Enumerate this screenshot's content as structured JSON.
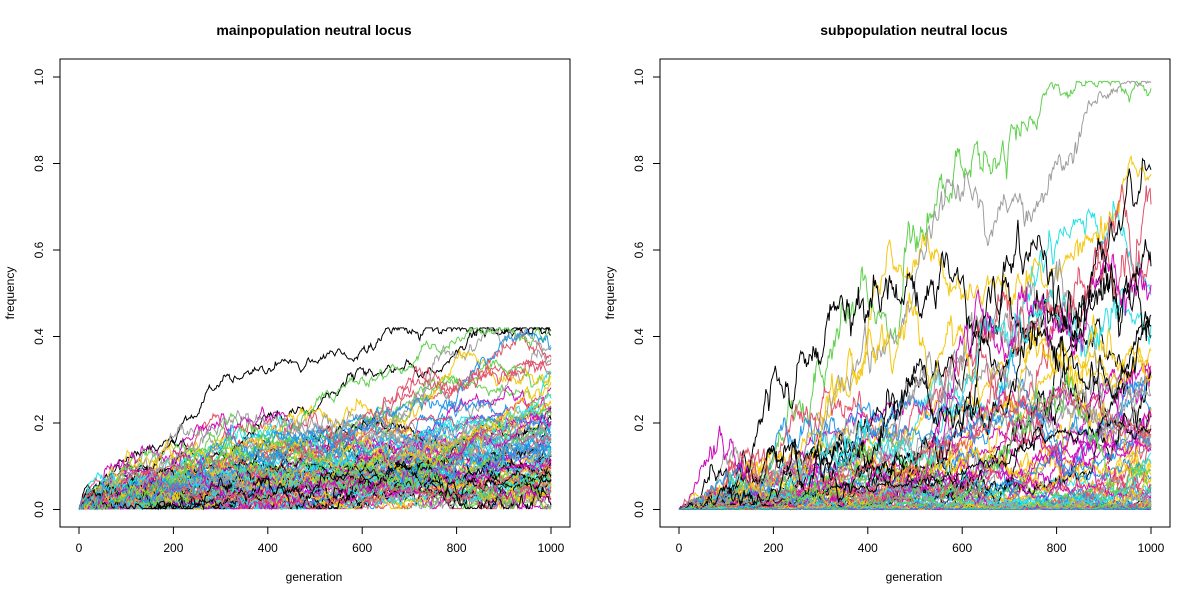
{
  "chart_data": [
    {
      "type": "line",
      "title": "mainpopulation neutral locus",
      "xlabel": "generation",
      "ylabel": "frequency",
      "xlim": [
        0,
        1000
      ],
      "ylim": [
        0,
        1
      ],
      "xticks": [
        "0",
        "200",
        "400",
        "600",
        "800",
        "1000"
      ],
      "yticks": [
        "0.0",
        "0.2",
        "0.4",
        "0.6",
        "0.8",
        "1.0"
      ],
      "grid": false,
      "legend": "none",
      "line_count": 100,
      "series_final_values_sample": [
        0.38,
        0.36,
        0.3,
        0.24,
        0.2,
        0.18,
        0.17,
        0.16,
        0.15,
        0.14,
        0.12,
        0.1,
        0.09,
        0.08,
        0.07,
        0.06,
        0.05,
        0.04,
        0.03,
        0.02
      ],
      "series_peak_values_sample": [
        0.4,
        0.4,
        0.3,
        0.24,
        0.24,
        0.21,
        0.2,
        0.18
      ],
      "palette": [
        "#000000",
        "#DF536B",
        "#61D04F",
        "#2297E6",
        "#28E2E5",
        "#CD0BBC",
        "#F5C710",
        "#9E9E9E"
      ]
    },
    {
      "type": "line",
      "title": "subpopulation neutral locus",
      "xlabel": "generation",
      "ylabel": "frequency",
      "xlim": [
        0,
        1000
      ],
      "ylim": [
        0,
        1
      ],
      "xticks": [
        "0",
        "200",
        "400",
        "600",
        "800",
        "1000"
      ],
      "yticks": [
        "0.0",
        "0.2",
        "0.4",
        "0.6",
        "0.8",
        "1.0"
      ],
      "grid": false,
      "legend": "none",
      "line_count": 100,
      "series_peak_values_sample": [
        0.98,
        0.88,
        0.74,
        0.72,
        0.68,
        0.62,
        0.6,
        0.55,
        0.5,
        0.45
      ],
      "series_final_values_sample": [
        0.72,
        0.68,
        0.62,
        0.55,
        0.48,
        0.44,
        0.35,
        0.2,
        0.15,
        0.05
      ],
      "palette": [
        "#000000",
        "#DF536B",
        "#61D04F",
        "#2297E6",
        "#28E2E5",
        "#CD0BBC",
        "#F5C710",
        "#9E9E9E"
      ]
    }
  ]
}
